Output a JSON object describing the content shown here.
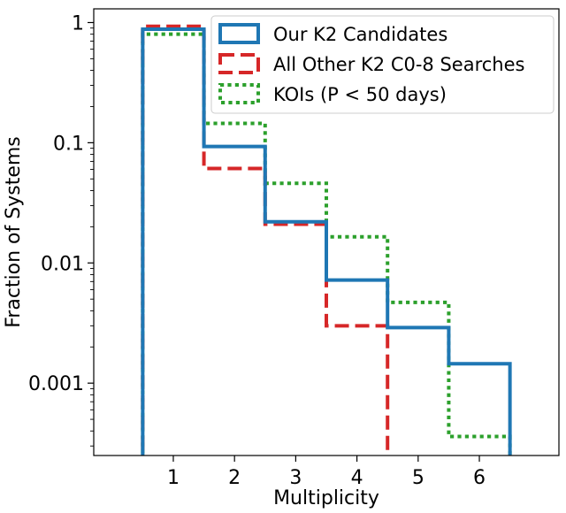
{
  "chart_data": {
    "type": "step",
    "title": "",
    "xlabel": "Multiplicity",
    "ylabel": "Fraction of Systems",
    "xscale": "linear",
    "yscale": "log",
    "xlim": [
      -0.3,
      7.3
    ],
    "ylim": [
      0.00025,
      1.3
    ],
    "xticks": [
      1,
      2,
      3,
      4,
      5,
      6
    ],
    "xtick_labels": [
      "1",
      "2",
      "3",
      "4",
      "5",
      "6"
    ],
    "yticks": [
      0.001,
      0.01,
      0.1,
      1
    ],
    "ytick_labels": [
      "0.001",
      "0.01",
      "0.1",
      "1"
    ],
    "grid": false,
    "legend_position": "top-right",
    "bin_edges": [
      0.5,
      1.5,
      2.5,
      3.5,
      4.5,
      5.5,
      6.5
    ],
    "series": [
      {
        "name": "Our K2 Candidates",
        "color": "#1f77b4",
        "linestyle": "solid",
        "values": [
          0.88,
          0.093,
          0.022,
          0.0072,
          0.0029,
          0.00145
        ]
      },
      {
        "name": "All Other K2 C0-8 Searches",
        "color": "#d62728",
        "linestyle": "dashed",
        "values": [
          0.93,
          0.061,
          0.021,
          0.003,
          0,
          0
        ]
      },
      {
        "name": "KOIs (P < 50 days)",
        "color": "#2ca02c",
        "linestyle": "dotted",
        "values": [
          0.8,
          0.145,
          0.046,
          0.0165,
          0.0047,
          0.00036
        ]
      }
    ]
  }
}
